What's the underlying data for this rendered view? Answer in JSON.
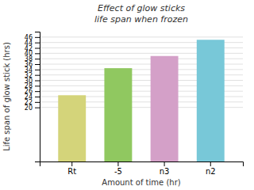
{
  "chart_data": {
    "type": "bar",
    "title": "Effect of glow sticks",
    "subtitle": "life span when frozen",
    "x_label": "Amount of time (hr)",
    "y_label": "Life span of glow stick (hrs)",
    "categories": [
      "Rt",
      "-5",
      "n3",
      "n2"
    ],
    "values": [
      24.5,
      34.5,
      39.0,
      45.0
    ],
    "colors": [
      "#d4d47a",
      "#90c860",
      "#d4a0c8",
      "#78c8d8"
    ],
    "ylim": [
      0,
      48
    ],
    "yticks": [
      20,
      22,
      24,
      26,
      28,
      30,
      32,
      34,
      36,
      38,
      40,
      42,
      44,
      46
    ],
    "grid": true
  }
}
